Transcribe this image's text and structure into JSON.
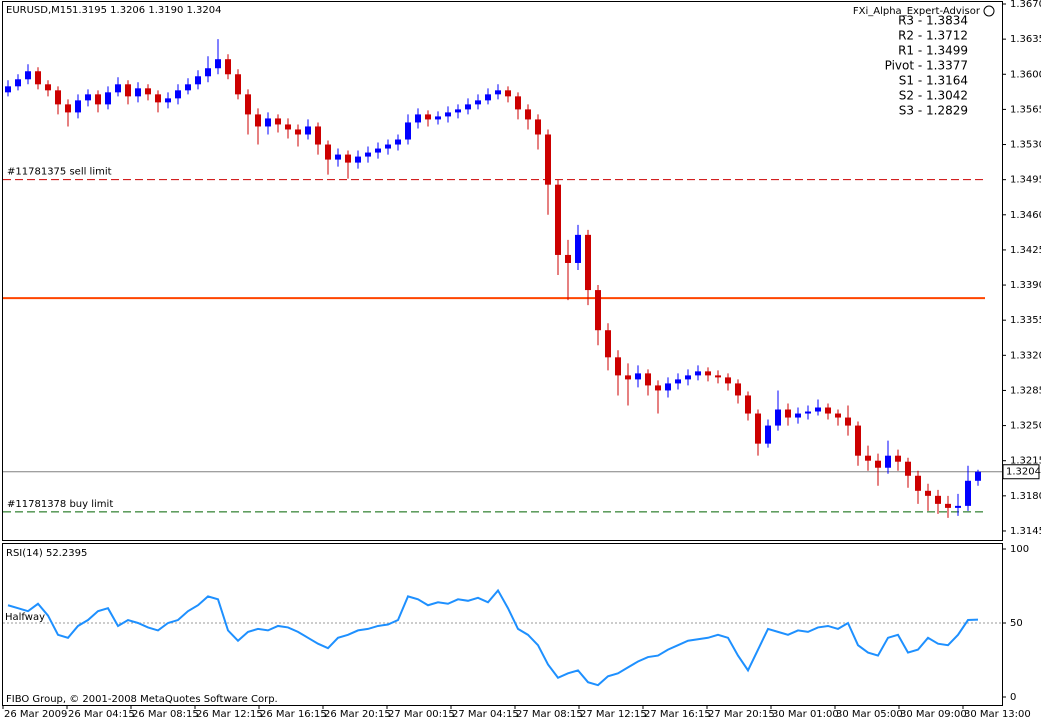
{
  "chart_data": [
    {
      "type": "candlestick",
      "title": "EURUSD,M15",
      "subtitle": "1.3195 1.3206 1.3190 1.3204",
      "up_color": "#0000ff",
      "down_color": "#cc0000",
      "ylim": [
        1.3136,
        1.3672
      ],
      "yticks": [
        {
          "value": 1.367,
          "label": "1.3670"
        },
        1.3635,
        {
          "value": 1.36,
          "label": "1.3600"
        },
        1.3565,
        {
          "value": 1.353,
          "label": "1.3530"
        },
        1.3495,
        {
          "value": 1.346,
          "label": "1.3460"
        },
        1.3425,
        {
          "value": 1.339,
          "label": "1.3390"
        },
        1.3355,
        {
          "value": 1.332,
          "label": "1.3320"
        },
        1.3285,
        {
          "value": 1.325,
          "label": "1.3250"
        },
        1.3215,
        {
          "value": 1.318,
          "label": "1.3180"
        },
        1.3145
      ],
      "current_price": 1.3204,
      "lines": [
        {
          "label": "#11781375 sell limit",
          "value": 1.3495,
          "color": "#cc0000",
          "style": "dashed"
        },
        {
          "value": 1.3377,
          "color": "#ff4500",
          "style": "solid"
        },
        {
          "label": "#11781378 buy limit",
          "value": 1.3164,
          "color": "#006400",
          "style": "dashed"
        }
      ],
      "pivot_title": "FXi_Alpha_Expert-Advisor",
      "pivot_levels": [
        {
          "label": "R3 - 1.3834",
          "color": "#dc143c"
        },
        {
          "label": "R2 - 1.3712",
          "color": "#dc143c"
        },
        {
          "label": "R1 - 1.3499",
          "color": "#dc143c"
        },
        {
          "label": "Pivot - 1.3377",
          "color": "#ff4500"
        },
        {
          "label": "S1 - 1.3164",
          "color": "#228b22"
        },
        {
          "label": "S2 - 1.3042",
          "color": "#228b22"
        },
        {
          "label": "S3 - 1.2829",
          "color": "#228b22"
        }
      ],
      "x_labels": [
        "26 Mar 2009",
        "26 Mar 04:15",
        "26 Mar 08:15",
        "26 Mar 12:15",
        "26 Mar 16:15",
        "26 Mar 20:15",
        "27 Mar 00:15",
        "27 Mar 04:15",
        "27 Mar 08:15",
        "27 Mar 12:15",
        "27 Mar 16:15",
        "27 Mar 20:15",
        "30 Mar 01:00",
        "30 Mar 05:00",
        "30 Mar 09:00",
        "30 Mar 13:00"
      ],
      "ohlc": [
        [
          1.3582,
          1.3594,
          1.3578,
          1.3588
        ],
        [
          1.3588,
          1.36,
          1.3584,
          1.3595
        ],
        [
          1.3595,
          1.361,
          1.359,
          1.3603
        ],
        [
          1.3603,
          1.3607,
          1.3585,
          1.359
        ],
        [
          1.359,
          1.3594,
          1.3578,
          1.3584
        ],
        [
          1.3584,
          1.3588,
          1.356,
          1.357
        ],
        [
          1.357,
          1.3575,
          1.3548,
          1.3562
        ],
        [
          1.3562,
          1.358,
          1.3556,
          1.3574
        ],
        [
          1.3574,
          1.3585,
          1.3568,
          1.358
        ],
        [
          1.358,
          1.3584,
          1.3562,
          1.357
        ],
        [
          1.357,
          1.3588,
          1.3565,
          1.3582
        ],
        [
          1.3582,
          1.3597,
          1.3578,
          1.359
        ],
        [
          1.359,
          1.3594,
          1.357,
          1.3578
        ],
        [
          1.3578,
          1.3592,
          1.3572,
          1.3586
        ],
        [
          1.3586,
          1.359,
          1.3574,
          1.358
        ],
        [
          1.358,
          1.3584,
          1.3562,
          1.3572
        ],
        [
          1.3572,
          1.3582,
          1.3566,
          1.3576
        ],
        [
          1.3576,
          1.359,
          1.357,
          1.3584
        ],
        [
          1.3584,
          1.3596,
          1.358,
          1.359
        ],
        [
          1.359,
          1.3604,
          1.3585,
          1.3598
        ],
        [
          1.3598,
          1.3618,
          1.3592,
          1.3606
        ],
        [
          1.3606,
          1.3635,
          1.36,
          1.3615
        ],
        [
          1.3615,
          1.362,
          1.3595,
          1.36
        ],
        [
          1.36,
          1.3605,
          1.3575,
          1.358
        ],
        [
          1.358,
          1.3585,
          1.354,
          1.356
        ],
        [
          1.356,
          1.3566,
          1.353,
          1.3548
        ],
        [
          1.3548,
          1.3562,
          1.354,
          1.3556
        ],
        [
          1.3556,
          1.356,
          1.3542,
          1.355
        ],
        [
          1.355,
          1.3556,
          1.3536,
          1.3545
        ],
        [
          1.3545,
          1.355,
          1.3528,
          1.354
        ],
        [
          1.354,
          1.3555,
          1.3535,
          1.3548
        ],
        [
          1.3548,
          1.3552,
          1.352,
          1.353
        ],
        [
          1.353,
          1.3534,
          1.35,
          1.3515
        ],
        [
          1.3515,
          1.3526,
          1.3508,
          1.352
        ],
        [
          1.352,
          1.3524,
          1.3496,
          1.3512
        ],
        [
          1.3512,
          1.3524,
          1.3506,
          1.3518
        ],
        [
          1.3518,
          1.3528,
          1.3512,
          1.3522
        ],
        [
          1.3522,
          1.3532,
          1.3516,
          1.3526
        ],
        [
          1.3526,
          1.3535,
          1.352,
          1.353
        ],
        [
          1.353,
          1.354,
          1.3524,
          1.3535
        ],
        [
          1.3535,
          1.356,
          1.353,
          1.3552
        ],
        [
          1.3552,
          1.3566,
          1.3546,
          1.356
        ],
        [
          1.356,
          1.3564,
          1.3548,
          1.3555
        ],
        [
          1.3555,
          1.3563,
          1.355,
          1.3558
        ],
        [
          1.3558,
          1.3568,
          1.3552,
          1.3562
        ],
        [
          1.3562,
          1.357,
          1.3556,
          1.3565
        ],
        [
          1.3565,
          1.3576,
          1.356,
          1.357
        ],
        [
          1.357,
          1.358,
          1.3565,
          1.3574
        ],
        [
          1.3574,
          1.3586,
          1.357,
          1.358
        ],
        [
          1.358,
          1.359,
          1.3575,
          1.3584
        ],
        [
          1.3584,
          1.3588,
          1.3572,
          1.3578
        ],
        [
          1.3578,
          1.3582,
          1.3555,
          1.3565
        ],
        [
          1.3565,
          1.357,
          1.3545,
          1.3555
        ],
        [
          1.3555,
          1.356,
          1.3525,
          1.354
        ],
        [
          1.354,
          1.3545,
          1.346,
          1.349
        ],
        [
          1.349,
          1.3495,
          1.34,
          1.342
        ],
        [
          1.342,
          1.3435,
          1.3375,
          1.3412
        ],
        [
          1.3412,
          1.345,
          1.3405,
          1.344
        ],
        [
          1.344,
          1.3445,
          1.337,
          1.3385
        ],
        [
          1.3385,
          1.339,
          1.333,
          1.3345
        ],
        [
          1.3345,
          1.3352,
          1.3305,
          1.3318
        ],
        [
          1.3318,
          1.3325,
          1.328,
          1.33
        ],
        [
          1.33,
          1.3312,
          1.327,
          1.3296
        ],
        [
          1.3296,
          1.331,
          1.3288,
          1.3302
        ],
        [
          1.3302,
          1.3306,
          1.328,
          1.329
        ],
        [
          1.329,
          1.3295,
          1.3262,
          1.3285
        ],
        [
          1.3285,
          1.3298,
          1.3278,
          1.3292
        ],
        [
          1.3292,
          1.3302,
          1.3286,
          1.3296
        ],
        [
          1.3296,
          1.3306,
          1.329,
          1.33
        ],
        [
          1.33,
          1.331,
          1.3295,
          1.3304
        ],
        [
          1.3304,
          1.3308,
          1.3294,
          1.33
        ],
        [
          1.33,
          1.3305,
          1.3292,
          1.3298
        ],
        [
          1.3298,
          1.3302,
          1.3285,
          1.3292
        ],
        [
          1.3292,
          1.3296,
          1.3272,
          1.328
        ],
        [
          1.328,
          1.3284,
          1.3255,
          1.3262
        ],
        [
          1.3262,
          1.3266,
          1.322,
          1.3232
        ],
        [
          1.3232,
          1.3256,
          1.3228,
          1.325
        ],
        [
          1.325,
          1.3285,
          1.3245,
          1.3266
        ],
        [
          1.3266,
          1.3272,
          1.325,
          1.3258
        ],
        [
          1.3258,
          1.3268,
          1.3252,
          1.3262
        ],
        [
          1.3262,
          1.327,
          1.3256,
          1.3264
        ],
        [
          1.3264,
          1.3276,
          1.326,
          1.3268
        ],
        [
          1.3268,
          1.3272,
          1.3256,
          1.3262
        ],
        [
          1.3262,
          1.3266,
          1.325,
          1.3258
        ],
        [
          1.3258,
          1.327,
          1.324,
          1.325
        ],
        [
          1.325,
          1.3254,
          1.321,
          1.322
        ],
        [
          1.322,
          1.323,
          1.3205,
          1.3215
        ],
        [
          1.3215,
          1.3222,
          1.319,
          1.3208
        ],
        [
          1.3208,
          1.3235,
          1.3202,
          1.322
        ],
        [
          1.322,
          1.3226,
          1.3205,
          1.3214
        ],
        [
          1.3214,
          1.3218,
          1.3188,
          1.32
        ],
        [
          1.32,
          1.3205,
          1.3172,
          1.3185
        ],
        [
          1.3185,
          1.3192,
          1.3165,
          1.318
        ],
        [
          1.318,
          1.3186,
          1.3162,
          1.3172
        ],
        [
          1.3172,
          1.318,
          1.3158,
          1.3168
        ],
        [
          1.3168,
          1.3182,
          1.316,
          1.317
        ],
        [
          1.317,
          1.321,
          1.3165,
          1.3195
        ],
        [
          1.3195,
          1.3206,
          1.319,
          1.3204
        ]
      ]
    },
    {
      "type": "line",
      "title": "RSI(14) 52.2395",
      "color": "#1e90ff",
      "ylim": [
        0,
        100
      ],
      "yticks": [
        100,
        50,
        0
      ],
      "levels": [
        {
          "value": 50,
          "label": "Halfway"
        }
      ],
      "values": [
        62,
        60,
        58,
        63,
        55,
        42,
        40,
        48,
        52,
        58,
        60,
        48,
        52,
        50,
        47,
        45,
        50,
        52,
        58,
        62,
        68,
        66,
        45,
        38,
        44,
        46,
        45,
        48,
        47,
        44,
        40,
        36,
        33,
        40,
        42,
        45,
        46,
        48,
        49,
        52,
        68,
        66,
        62,
        64,
        63,
        66,
        65,
        67,
        64,
        72,
        60,
        46,
        42,
        35,
        22,
        13,
        16,
        18,
        10,
        8,
        14,
        16,
        20,
        24,
        27,
        28,
        32,
        35,
        38,
        39,
        40,
        42,
        40,
        28,
        18,
        32,
        46,
        44,
        42,
        45,
        44,
        47,
        48,
        46,
        50,
        35,
        30,
        28,
        40,
        42,
        30,
        32,
        40,
        36,
        35,
        42,
        52,
        52.2395
      ]
    }
  ],
  "footer": "FIBO Group, © 2001-2008 MetaQuotes Software Corp."
}
